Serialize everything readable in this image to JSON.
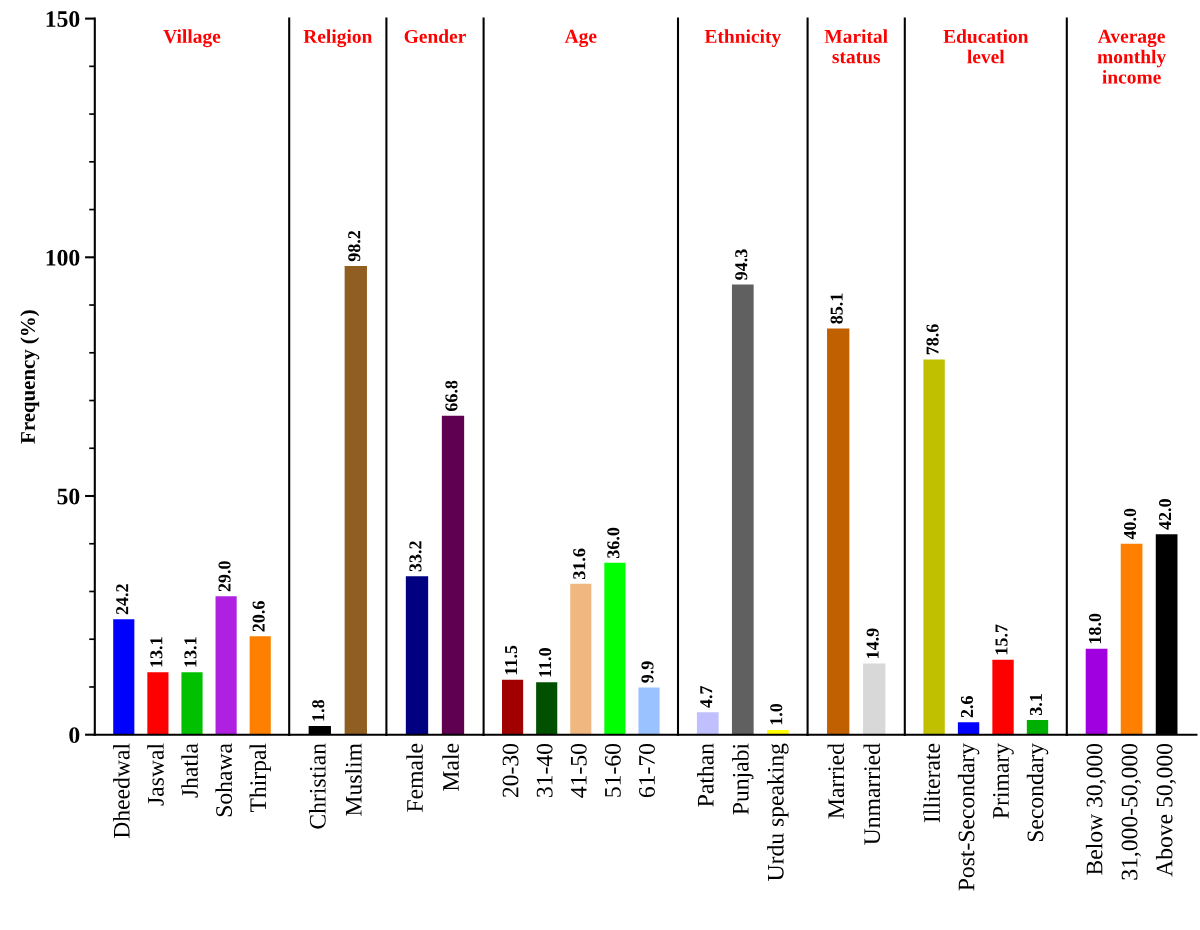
{
  "chart_data": [
    {
      "type": "bar",
      "title": "Village",
      "ylabel": "Frequency (%)",
      "categories": [
        "Dheedwal",
        "Jaswal",
        "Jhatla",
        "Sohawa",
        "Thirpal"
      ],
      "values": [
        24.2,
        13.1,
        13.1,
        29.0,
        20.6
      ],
      "value_labels": [
        "24.2",
        "13.1",
        "13.1",
        "29.0",
        "20.6"
      ],
      "colors": [
        "#0000ff",
        "#ff0000",
        "#00c000",
        "#b020e0",
        "#ff8000"
      ],
      "ylim": [
        0,
        150
      ],
      "yticks": [
        0,
        50,
        100,
        150
      ],
      "grid": false,
      "legend": false
    },
    {
      "type": "bar",
      "title": "Religion",
      "categories": [
        "Christian",
        "Muslim"
      ],
      "values": [
        1.8,
        98.2
      ],
      "value_labels": [
        "1.8",
        "98.2"
      ],
      "colors": [
        "#000000",
        "#8f5e20"
      ],
      "ylim": [
        0,
        150
      ],
      "tick_labels": "x",
      "grid": false,
      "legend": false
    },
    {
      "type": "bar",
      "title": "Gender",
      "categories": [
        "Female",
        "Male"
      ],
      "values": [
        33.2,
        66.8
      ],
      "value_labels": [
        "33.2",
        "66.8"
      ],
      "colors": [
        "#000080",
        "#600050"
      ],
      "ylim": [
        0,
        150
      ],
      "tick_labels": "x",
      "grid": false,
      "legend": false
    },
    {
      "type": "bar",
      "title": "Age",
      "categories": [
        "20-30",
        "31-40",
        "41-50",
        "51-60",
        "61-70"
      ],
      "values": [
        11.5,
        11.0,
        31.6,
        36.0,
        9.9
      ],
      "value_labels": [
        "11.5",
        "11.0",
        "31.6",
        "36.0",
        "9.9"
      ],
      "colors": [
        "#a00000",
        "#005000",
        "#f0b880",
        "#00ff00",
        "#99c2ff"
      ],
      "ylim": [
        0,
        150
      ],
      "tick_labels": "x",
      "grid": false,
      "legend": false
    },
    {
      "type": "bar",
      "title": "Ethnicity",
      "categories": [
        "Pathan",
        "Punjabi",
        "Urdu speaking"
      ],
      "values": [
        4.7,
        94.3,
        1.0
      ],
      "value_labels": [
        "4.7",
        "94.3",
        "1.0"
      ],
      "colors": [
        "#c0c0ff",
        "#606060",
        "#ffff00"
      ],
      "ylim": [
        0,
        150
      ],
      "tick_labels": "x",
      "grid": false,
      "legend": false
    },
    {
      "type": "bar",
      "title": "Marital\nstatus",
      "categories": [
        "Married",
        "Unmarried"
      ],
      "values": [
        85.1,
        14.9
      ],
      "value_labels": [
        "85.1",
        "14.9"
      ],
      "colors": [
        "#c06000",
        "#d8d8d8"
      ],
      "ylim": [
        0,
        150
      ],
      "tick_labels": "x",
      "grid": false,
      "legend": false
    },
    {
      "type": "bar",
      "title": "Education\nlevel",
      "categories": [
        "Illiterate",
        "Post-Secondary",
        "Primary",
        "Secondary"
      ],
      "values": [
        78.6,
        2.6,
        15.7,
        3.1
      ],
      "value_labels": [
        "78.6",
        "2.6",
        "15.7",
        "3.1"
      ],
      "colors": [
        "#c0c000",
        "#0000ff",
        "#ff0000",
        "#00b000"
      ],
      "ylim": [
        0,
        150
      ],
      "tick_labels": "x",
      "grid": false,
      "legend": false
    },
    {
      "type": "bar",
      "title": "Average\nmonthly\nincome",
      "categories": [
        "Below 30,000",
        "31,000-50,000",
        "Above 50,000"
      ],
      "values": [
        18.0,
        40.0,
        42.0
      ],
      "value_labels": [
        "18.0",
        "40.0",
        "42.0"
      ],
      "colors": [
        "#a000e0",
        "#ff8000",
        "#000000"
      ],
      "ylim": [
        0,
        150
      ],
      "tick_labels": "x",
      "grid": false,
      "legend": false
    }
  ]
}
